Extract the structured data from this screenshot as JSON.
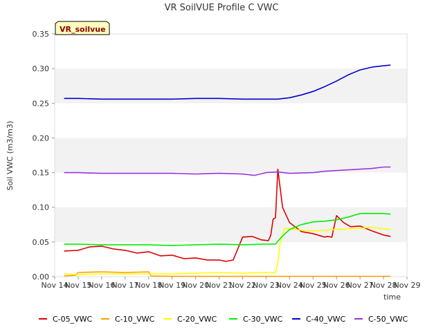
{
  "chart_data": {
    "type": "line",
    "title": "VR SoilVUE Profile C VWC",
    "badge": "VR_soilvue",
    "xlabel": "time",
    "ylabel": "Soil VWC (m3/m3)",
    "ylim": [
      0,
      0.35
    ],
    "yticks": [
      "0.00",
      "0.05",
      "0.10",
      "0.15",
      "0.20",
      "0.25",
      "0.30",
      "0.35"
    ],
    "xlim": [
      14,
      29
    ],
    "xticks": [
      "Nov 14",
      "Nov 15",
      "Nov 16",
      "Nov 17",
      "Nov 18",
      "Nov 19",
      "Nov 20",
      "Nov 21",
      "Nov 22",
      "Nov 23",
      "Nov 24",
      "Nov 25",
      "Nov 26",
      "Nov 27",
      "Nov 28",
      "Nov 29"
    ],
    "grid": true,
    "legend_position": "bottom",
    "series": [
      {
        "name": "C-05_VWC",
        "color": "#dd0000",
        "x": [
          14.4,
          15.0,
          15.5,
          16.0,
          16.5,
          17.0,
          17.5,
          18.0,
          18.5,
          19.0,
          19.5,
          20.0,
          20.5,
          21.0,
          21.3,
          21.6,
          22.0,
          22.4,
          22.8,
          23.1,
          23.2,
          23.3,
          23.4,
          23.5,
          23.7,
          24.0,
          24.5,
          25.0,
          25.3,
          25.5,
          25.6,
          25.8,
          26.0,
          26.3,
          26.6,
          27.0,
          27.5,
          28.0,
          28.3
        ],
        "y": [
          0.037,
          0.038,
          0.043,
          0.044,
          0.04,
          0.038,
          0.034,
          0.036,
          0.03,
          0.031,
          0.026,
          0.027,
          0.024,
          0.024,
          0.022,
          0.024,
          0.057,
          0.058,
          0.053,
          0.052,
          0.06,
          0.083,
          0.085,
          0.155,
          0.1,
          0.078,
          0.065,
          0.062,
          0.059,
          0.057,
          0.058,
          0.057,
          0.088,
          0.078,
          0.072,
          0.073,
          0.066,
          0.06,
          0.058
        ]
      },
      {
        "name": "C-10_VWC",
        "color": "#ff9900",
        "x": [
          14.4,
          14.9,
          15.0,
          16.0,
          17.0,
          18.0,
          18.1,
          19.0,
          21.0,
          23.0,
          25.0,
          27.0,
          28.3
        ],
        "y": [
          0.001,
          0.002,
          0.006,
          0.007,
          0.006,
          0.007,
          0.001,
          0.0005,
          0.0005,
          0.0005,
          0.0005,
          0.0005,
          0.0005
        ]
      },
      {
        "name": "C-20_VWC",
        "color": "#ffff00",
        "x": [
          14.4,
          15.0,
          16.0,
          17.0,
          18.0,
          19.0,
          20.0,
          21.0,
          22.0,
          23.0,
          23.4,
          23.5,
          23.6,
          23.8,
          24.0,
          24.5,
          25.0,
          25.5,
          26.0,
          26.5,
          27.0,
          27.5,
          28.0,
          28.3
        ],
        "y": [
          0.004,
          0.003,
          0.004,
          0.004,
          0.004,
          0.004,
          0.005,
          0.006,
          0.005,
          0.006,
          0.006,
          0.02,
          0.05,
          0.07,
          0.069,
          0.067,
          0.066,
          0.067,
          0.068,
          0.069,
          0.07,
          0.071,
          0.069,
          0.068
        ]
      },
      {
        "name": "C-30_VWC",
        "color": "#00ee00",
        "x": [
          14.4,
          15.0,
          16.0,
          17.0,
          18.0,
          19.0,
          20.0,
          21.0,
          22.0,
          23.0,
          23.4,
          23.6,
          24.0,
          24.5,
          25.0,
          25.5,
          26.0,
          26.5,
          27.0,
          27.5,
          28.0,
          28.3
        ],
        "y": [
          0.047,
          0.047,
          0.046,
          0.046,
          0.046,
          0.045,
          0.046,
          0.047,
          0.046,
          0.047,
          0.047,
          0.055,
          0.068,
          0.075,
          0.079,
          0.08,
          0.082,
          0.086,
          0.091,
          0.091,
          0.091,
          0.09
        ]
      },
      {
        "name": "C-40_VWC",
        "color": "#0000cc",
        "x": [
          14.4,
          15.0,
          16.0,
          17.0,
          18.0,
          19.0,
          20.0,
          21.0,
          22.0,
          23.0,
          23.5,
          24.0,
          24.5,
          25.0,
          25.5,
          26.0,
          26.5,
          27.0,
          27.5,
          28.0,
          28.3
        ],
        "y": [
          0.257,
          0.257,
          0.256,
          0.256,
          0.256,
          0.256,
          0.257,
          0.257,
          0.256,
          0.256,
          0.256,
          0.258,
          0.262,
          0.267,
          0.274,
          0.282,
          0.291,
          0.298,
          0.302,
          0.304,
          0.305
        ]
      },
      {
        "name": "C-50_VWC",
        "color": "#9933dd",
        "x": [
          14.4,
          15.0,
          16.0,
          17.0,
          18.0,
          19.0,
          20.0,
          21.0,
          22.0,
          22.5,
          23.0,
          23.5,
          24.0,
          25.0,
          25.5,
          26.0,
          26.5,
          27.0,
          27.5,
          28.0,
          28.3
        ],
        "y": [
          0.15,
          0.15,
          0.149,
          0.149,
          0.149,
          0.149,
          0.148,
          0.149,
          0.148,
          0.146,
          0.15,
          0.151,
          0.149,
          0.15,
          0.152,
          0.153,
          0.154,
          0.155,
          0.156,
          0.158,
          0.158
        ]
      }
    ]
  }
}
